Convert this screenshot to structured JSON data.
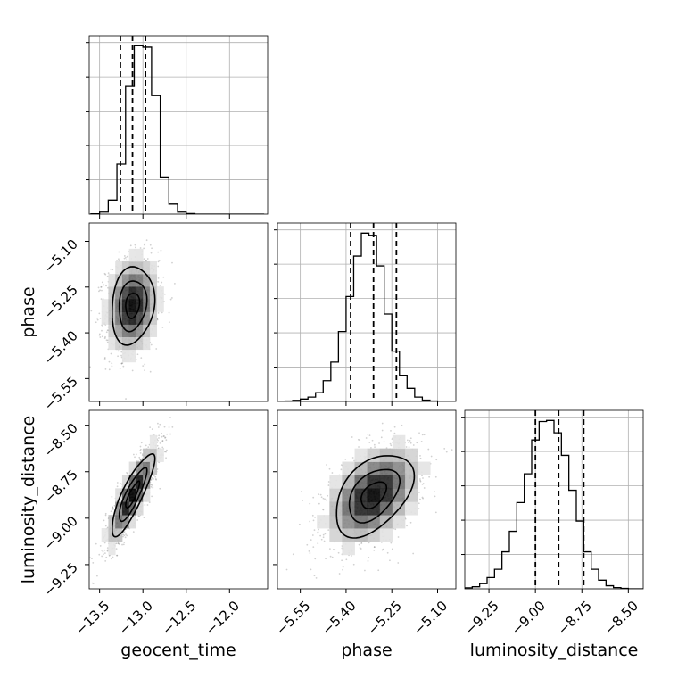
{
  "chart_data": {
    "type": "corner",
    "parameters": [
      "geocent_time",
      "phase",
      "luminosity_distance"
    ],
    "axis_titles": {
      "geocent_time": "geocent_time",
      "phase": "phase",
      "luminosity_distance": "luminosity_distance"
    },
    "ranges": {
      "geocent_time": [
        -13.62,
        -11.56
      ],
      "phase": [
        -5.625,
        -5.04
      ],
      "luminosity_distance": [
        -9.38,
        -8.42
      ]
    },
    "ticks": {
      "geocent_time": {
        "values": [
          -13.5,
          -13.0,
          -12.5,
          -12.0
        ],
        "labels": [
          "−13.5",
          "−13.0",
          "−12.5",
          "−12.0"
        ]
      },
      "phase": {
        "values": [
          -5.55,
          -5.4,
          -5.25,
          -5.1
        ],
        "labels": [
          "−5.55",
          "−5.40",
          "−5.25",
          "−5.10"
        ]
      },
      "luminosity_distance": {
        "values": [
          -9.25,
          -9.0,
          -8.75,
          -8.5
        ],
        "labels": [
          "−9.25",
          "−9.00",
          "−8.75",
          "−8.50"
        ]
      }
    },
    "quantiles": {
      "geocent_time": [
        -13.26,
        -13.12,
        -12.97
      ],
      "phase": [
        -5.385,
        -5.31,
        -5.235
      ],
      "luminosity_distance": [
        -9.0,
        -8.875,
        -8.74
      ]
    },
    "diagonal_histograms": [
      {
        "param": "geocent_time",
        "bin_start": -13.6,
        "bin_width": 0.1,
        "counts": [
          2,
          14,
          98,
          350,
          900,
          1180,
          1170,
          830,
          260,
          70,
          14,
          4,
          0,
          0,
          0,
          0,
          0,
          0,
          0,
          0
        ]
      },
      {
        "param": "phase",
        "bin_start": -5.625,
        "bin_width": 0.025,
        "counts": [
          0,
          2,
          5,
          11,
          20,
          40,
          95,
          180,
          320,
          480,
          665,
          770,
          760,
          620,
          400,
          230,
          120,
          60,
          20,
          6,
          2,
          1,
          0
        ]
      },
      {
        "param": "luminosity_distance",
        "bin_start": -9.38,
        "bin_width": 0.04,
        "counts": [
          5,
          10,
          25,
          55,
          95,
          180,
          280,
          420,
          560,
          725,
          815,
          820,
          760,
          650,
          480,
          330,
          180,
          95,
          42,
          15,
          6,
          2,
          0,
          0
        ]
      }
    ],
    "correlations": {
      "phase|geocent_time": 0.15,
      "luminosity_distance|geocent_time": 0.85,
      "luminosity_distance|phase": 0.45
    },
    "grid": true,
    "contour_levels": 3
  }
}
